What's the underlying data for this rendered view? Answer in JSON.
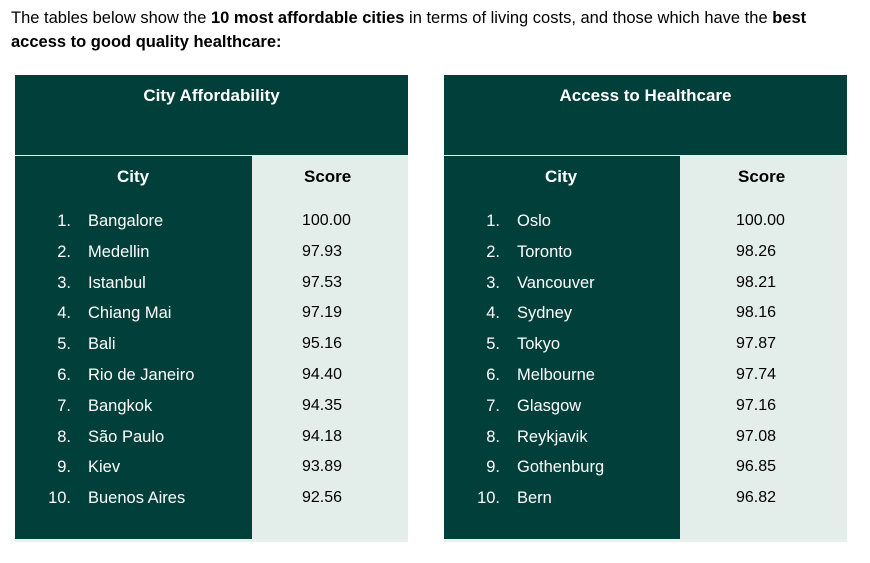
{
  "intro": {
    "part1": "The tables below show the ",
    "bold1": "10 most affordable cities",
    "part2": " in terms of living costs, and those which have the ",
    "bold2": "best access to good quality healthcare:"
  },
  "tables": [
    {
      "title": "City Affordability",
      "headers": {
        "city": "City",
        "score": "Score"
      },
      "rows": [
        {
          "rank": "1.",
          "city": "Bangalore",
          "score": "100.00"
        },
        {
          "rank": "2.",
          "city": "Medellin",
          "score": "97.93"
        },
        {
          "rank": "3.",
          "city": "Istanbul",
          "score": "97.53"
        },
        {
          "rank": "4.",
          "city": "Chiang Mai",
          "score": "97.19"
        },
        {
          "rank": "5.",
          "city": "Bali",
          "score": "95.16"
        },
        {
          "rank": "6.",
          "city": "Rio de Janeiro",
          "score": "94.40"
        },
        {
          "rank": "7.",
          "city": "Bangkok",
          "score": "94.35"
        },
        {
          "rank": "8.",
          "city": "São Paulo",
          "score": "94.18"
        },
        {
          "rank": "9.",
          "city": "Kiev",
          "score": "93.89"
        },
        {
          "rank": "10.",
          "city": "Buenos Aires",
          "score": "92.56"
        }
      ]
    },
    {
      "title": "Access to Healthcare",
      "headers": {
        "city": "City",
        "score": "Score"
      },
      "rows": [
        {
          "rank": "1.",
          "city": "Oslo",
          "score": "100.00"
        },
        {
          "rank": "2.",
          "city": "Toronto",
          "score": "98.26"
        },
        {
          "rank": "3.",
          "city": "Vancouver",
          "score": "98.21"
        },
        {
          "rank": "4.",
          "city": "Sydney",
          "score": "98.16"
        },
        {
          "rank": "5.",
          "city": "Tokyo",
          "score": "97.87"
        },
        {
          "rank": "6.",
          "city": "Melbourne",
          "score": "97.74"
        },
        {
          "rank": "7.",
          "city": "Glasgow",
          "score": "97.16"
        },
        {
          "rank": "8.",
          "city": "Reykjavik",
          "score": "97.08"
        },
        {
          "rank": "9.",
          "city": "Gothenburg",
          "score": "96.85"
        },
        {
          "rank": "10.",
          "city": "Bern",
          "score": "96.82"
        }
      ]
    }
  ],
  "colors": {
    "table_green": "#003f3a",
    "score_column": "#e3eeea"
  }
}
